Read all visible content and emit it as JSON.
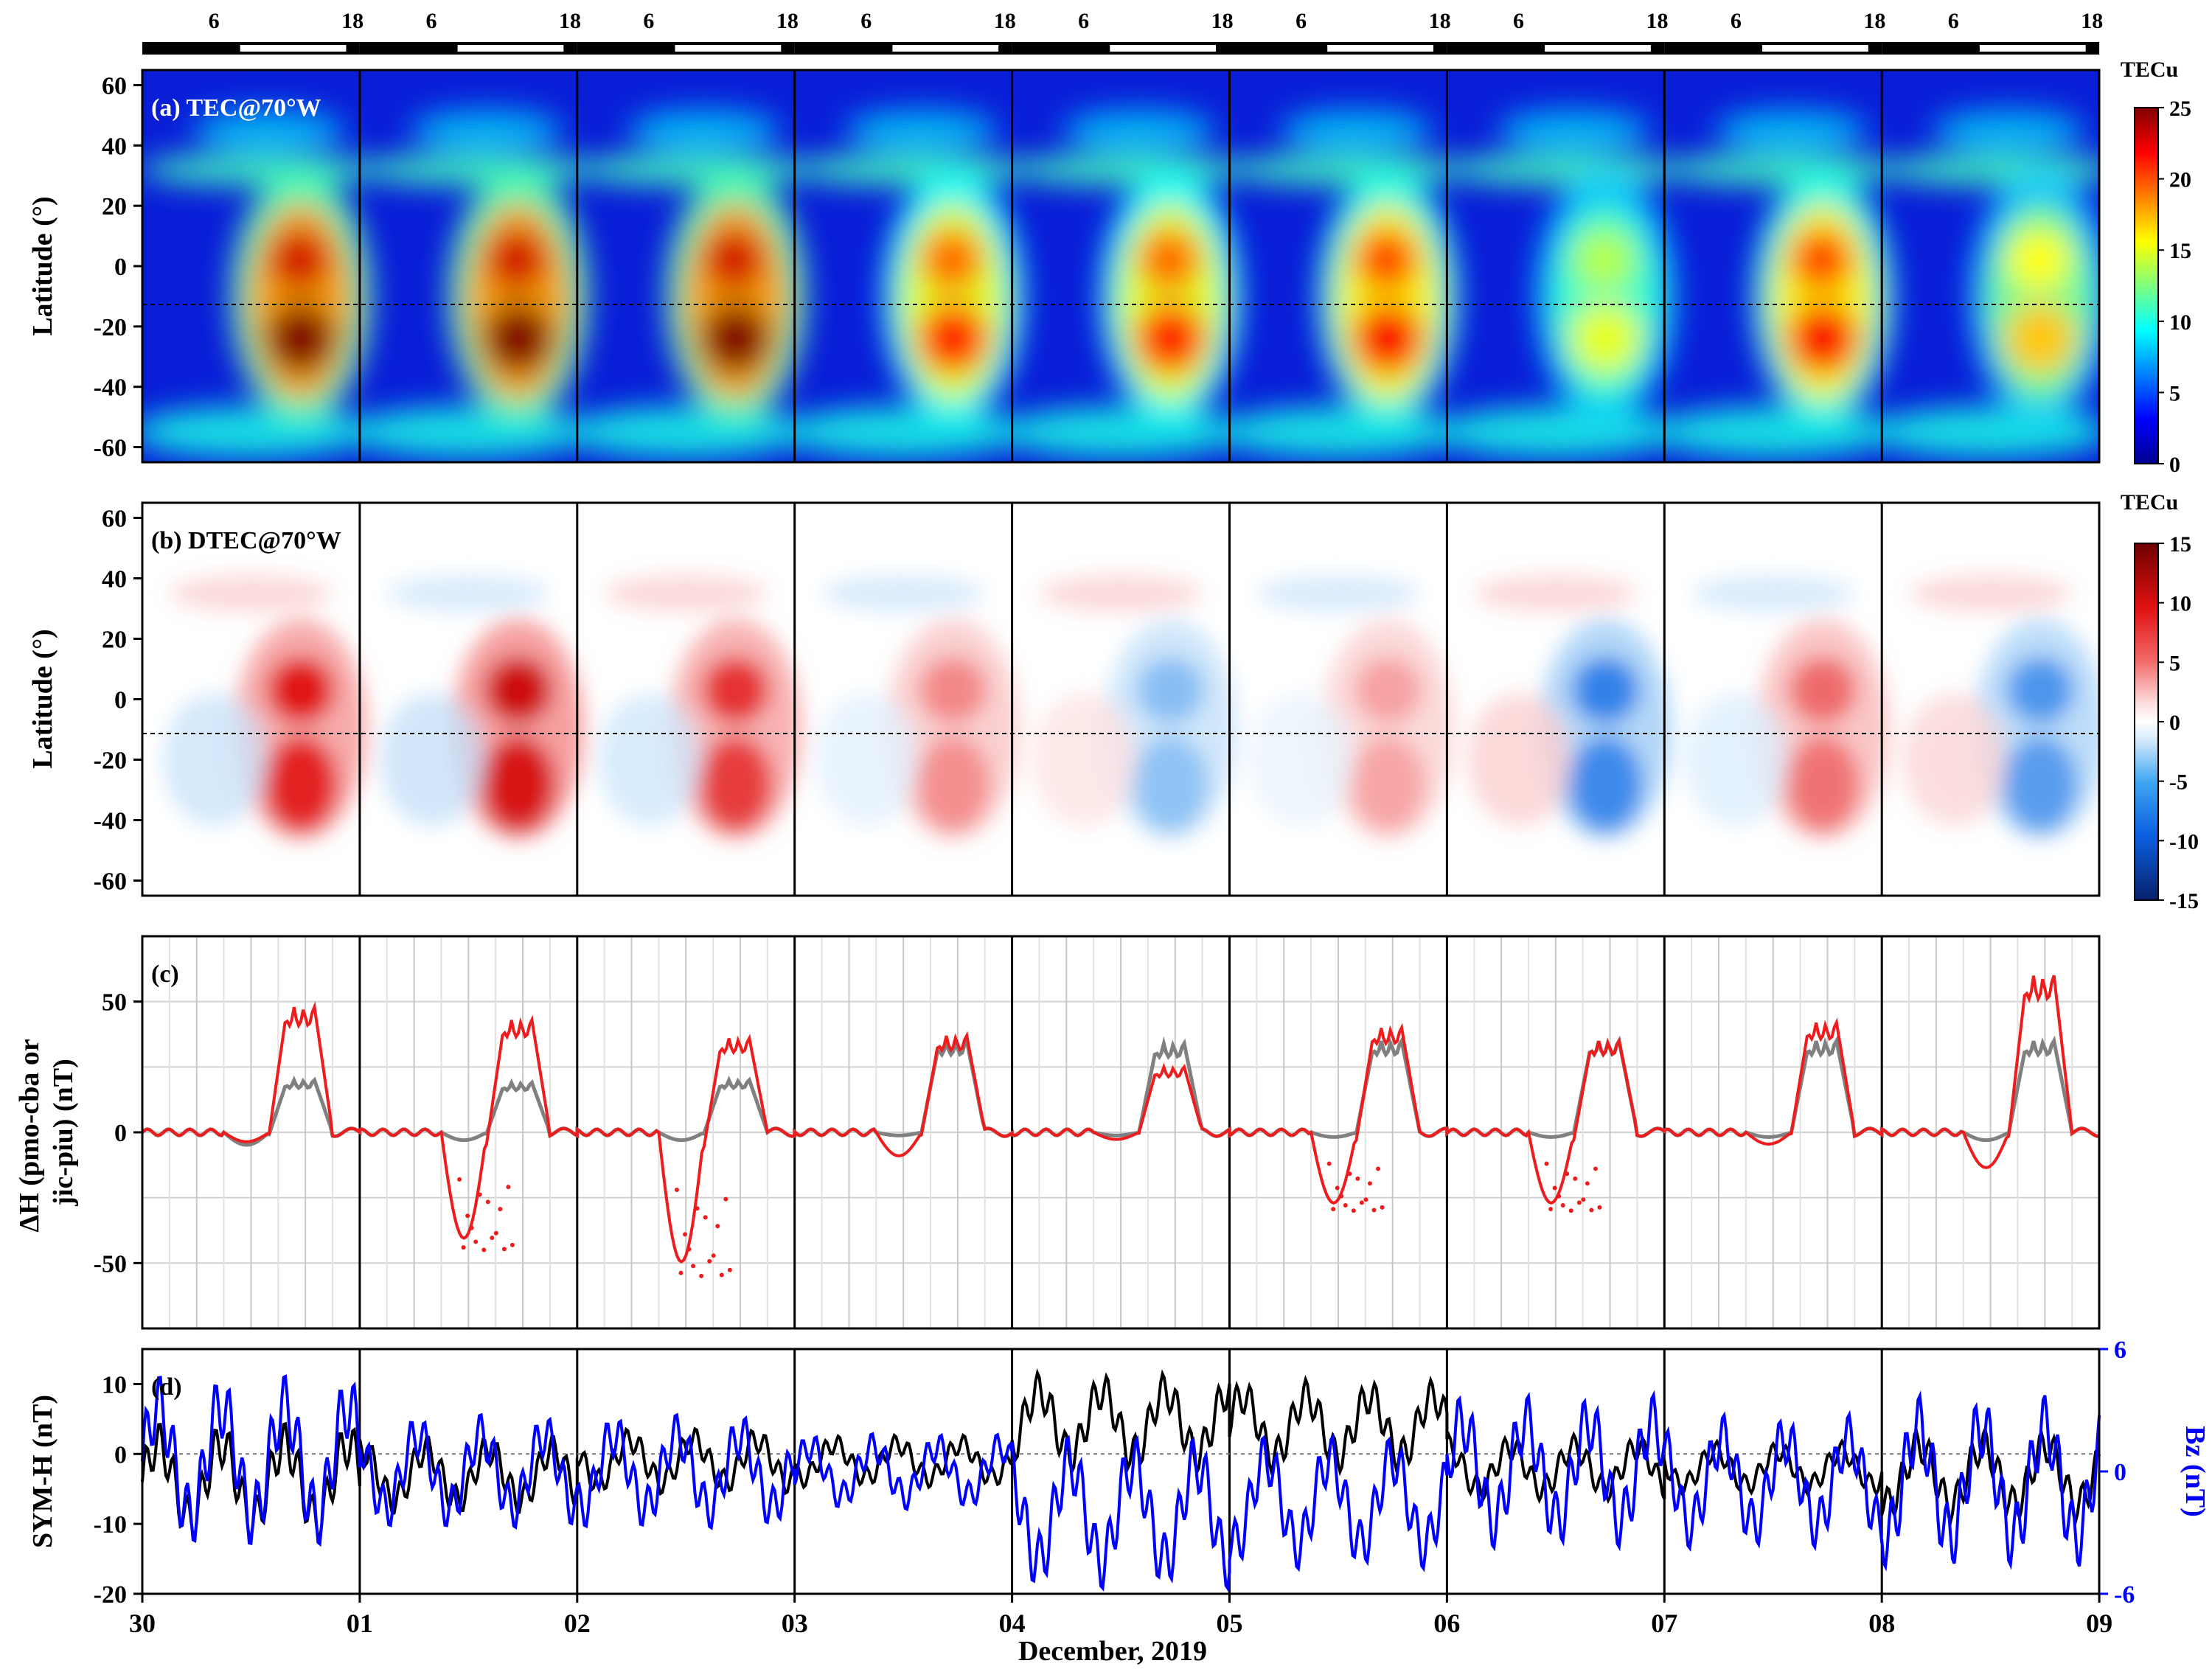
{
  "figure": {
    "x_axis_label": "December, 2019",
    "day_labels": [
      "30",
      "01",
      "02",
      "03",
      "04",
      "05",
      "06",
      "07",
      "08",
      "09"
    ],
    "top_hour_labels": [
      "6",
      "18"
    ],
    "colors": {
      "red": "#ee1c1c",
      "gray": "#808080",
      "black": "#000000",
      "blue": "#0000ff"
    }
  },
  "chart_data": [
    {
      "panel": "a",
      "type": "heatmap",
      "title": "(a) TEC@70°W",
      "ylabel": "Latitude (°)",
      "ylim": [
        -65,
        65
      ],
      "yticks": [
        -60,
        -40,
        -20,
        0,
        20,
        40,
        60
      ],
      "reference_latitude": -10,
      "colorbar": {
        "unit": "TECu",
        "range": [
          0,
          25
        ],
        "ticks": [
          0,
          5,
          10,
          15,
          20,
          25
        ],
        "colormap": "jet"
      },
      "peak_dates": [
        "30",
        "01",
        "02",
        "03",
        "04",
        "05",
        "06",
        "07",
        "08"
      ],
      "peak_values_tecu": [
        25,
        25,
        25,
        21,
        21,
        22,
        15,
        22,
        17
      ]
    },
    {
      "panel": "b",
      "type": "heatmap",
      "title": "(b) DTEC@70°W",
      "ylabel": "Latitude (°)",
      "ylim": [
        -65,
        65
      ],
      "yticks": [
        -60,
        -40,
        -20,
        0,
        20,
        40,
        60
      ],
      "reference_latitude": -10,
      "colorbar": {
        "unit": "TECu",
        "range": [
          -15,
          15
        ],
        "ticks": [
          -15,
          -10,
          -5,
          0,
          5,
          10,
          15
        ],
        "colormap": "blue-white-red"
      },
      "peak_dates": [
        "30",
        "01",
        "02",
        "03",
        "04",
        "05",
        "06",
        "07",
        "08"
      ],
      "peak_values_tecu": [
        9,
        10,
        8,
        5,
        -5,
        4,
        -8,
        6,
        -7
      ]
    },
    {
      "panel": "c",
      "type": "line",
      "title": "(c)",
      "ylabel": "ΔH (pmo-cba or jic-piu) (nT)",
      "ylim": [
        -75,
        75
      ],
      "yticks": [
        -50,
        0,
        50
      ],
      "grid": true,
      "series": [
        {
          "color": "#ee1c1c",
          "daily_peak_nT": [
            48,
            43,
            36,
            37,
            25,
            40,
            35,
            42,
            60
          ],
          "daily_minimum_nT": [
            -4,
            -45,
            -55,
            -10,
            -3,
            -30,
            -30,
            -5,
            -15
          ]
        },
        {
          "color": "#808080",
          "daily_peak_nT": [
            20,
            19,
            20,
            35,
            34,
            35,
            35,
            35,
            35
          ],
          "daily_minimum_nT": [
            -8,
            -5,
            -5,
            -2,
            -2,
            -3,
            -3,
            -3,
            -5
          ]
        }
      ]
    },
    {
      "panel": "d",
      "type": "line",
      "title": "(d)",
      "ylabel": "SYM-H (nT)",
      "ylim": [
        -20,
        15
      ],
      "yticks": [
        -20,
        -10,
        0,
        10
      ],
      "y2label": "Bz (nT)",
      "y2lim": [
        -6,
        6
      ],
      "y2ticks": [
        -6,
        0,
        6
      ],
      "series": [
        {
          "color": "#000000",
          "daily_max_nT": [
            5,
            3,
            4,
            3,
            12,
            11,
            3,
            2,
            4
          ],
          "daily_min_nT": [
            -13,
            -9,
            -6,
            -5,
            -3,
            -3,
            -7,
            -6,
            -10
          ]
        },
        {
          "color": "#0000ff",
          "axis": "right",
          "daily_max_nT": [
            5,
            3,
            3,
            2,
            2,
            2,
            4,
            3,
            4
          ],
          "daily_min_nT": [
            -4,
            -3,
            -3,
            -2,
            -6,
            -5,
            -4,
            -4,
            -5
          ]
        }
      ]
    }
  ]
}
